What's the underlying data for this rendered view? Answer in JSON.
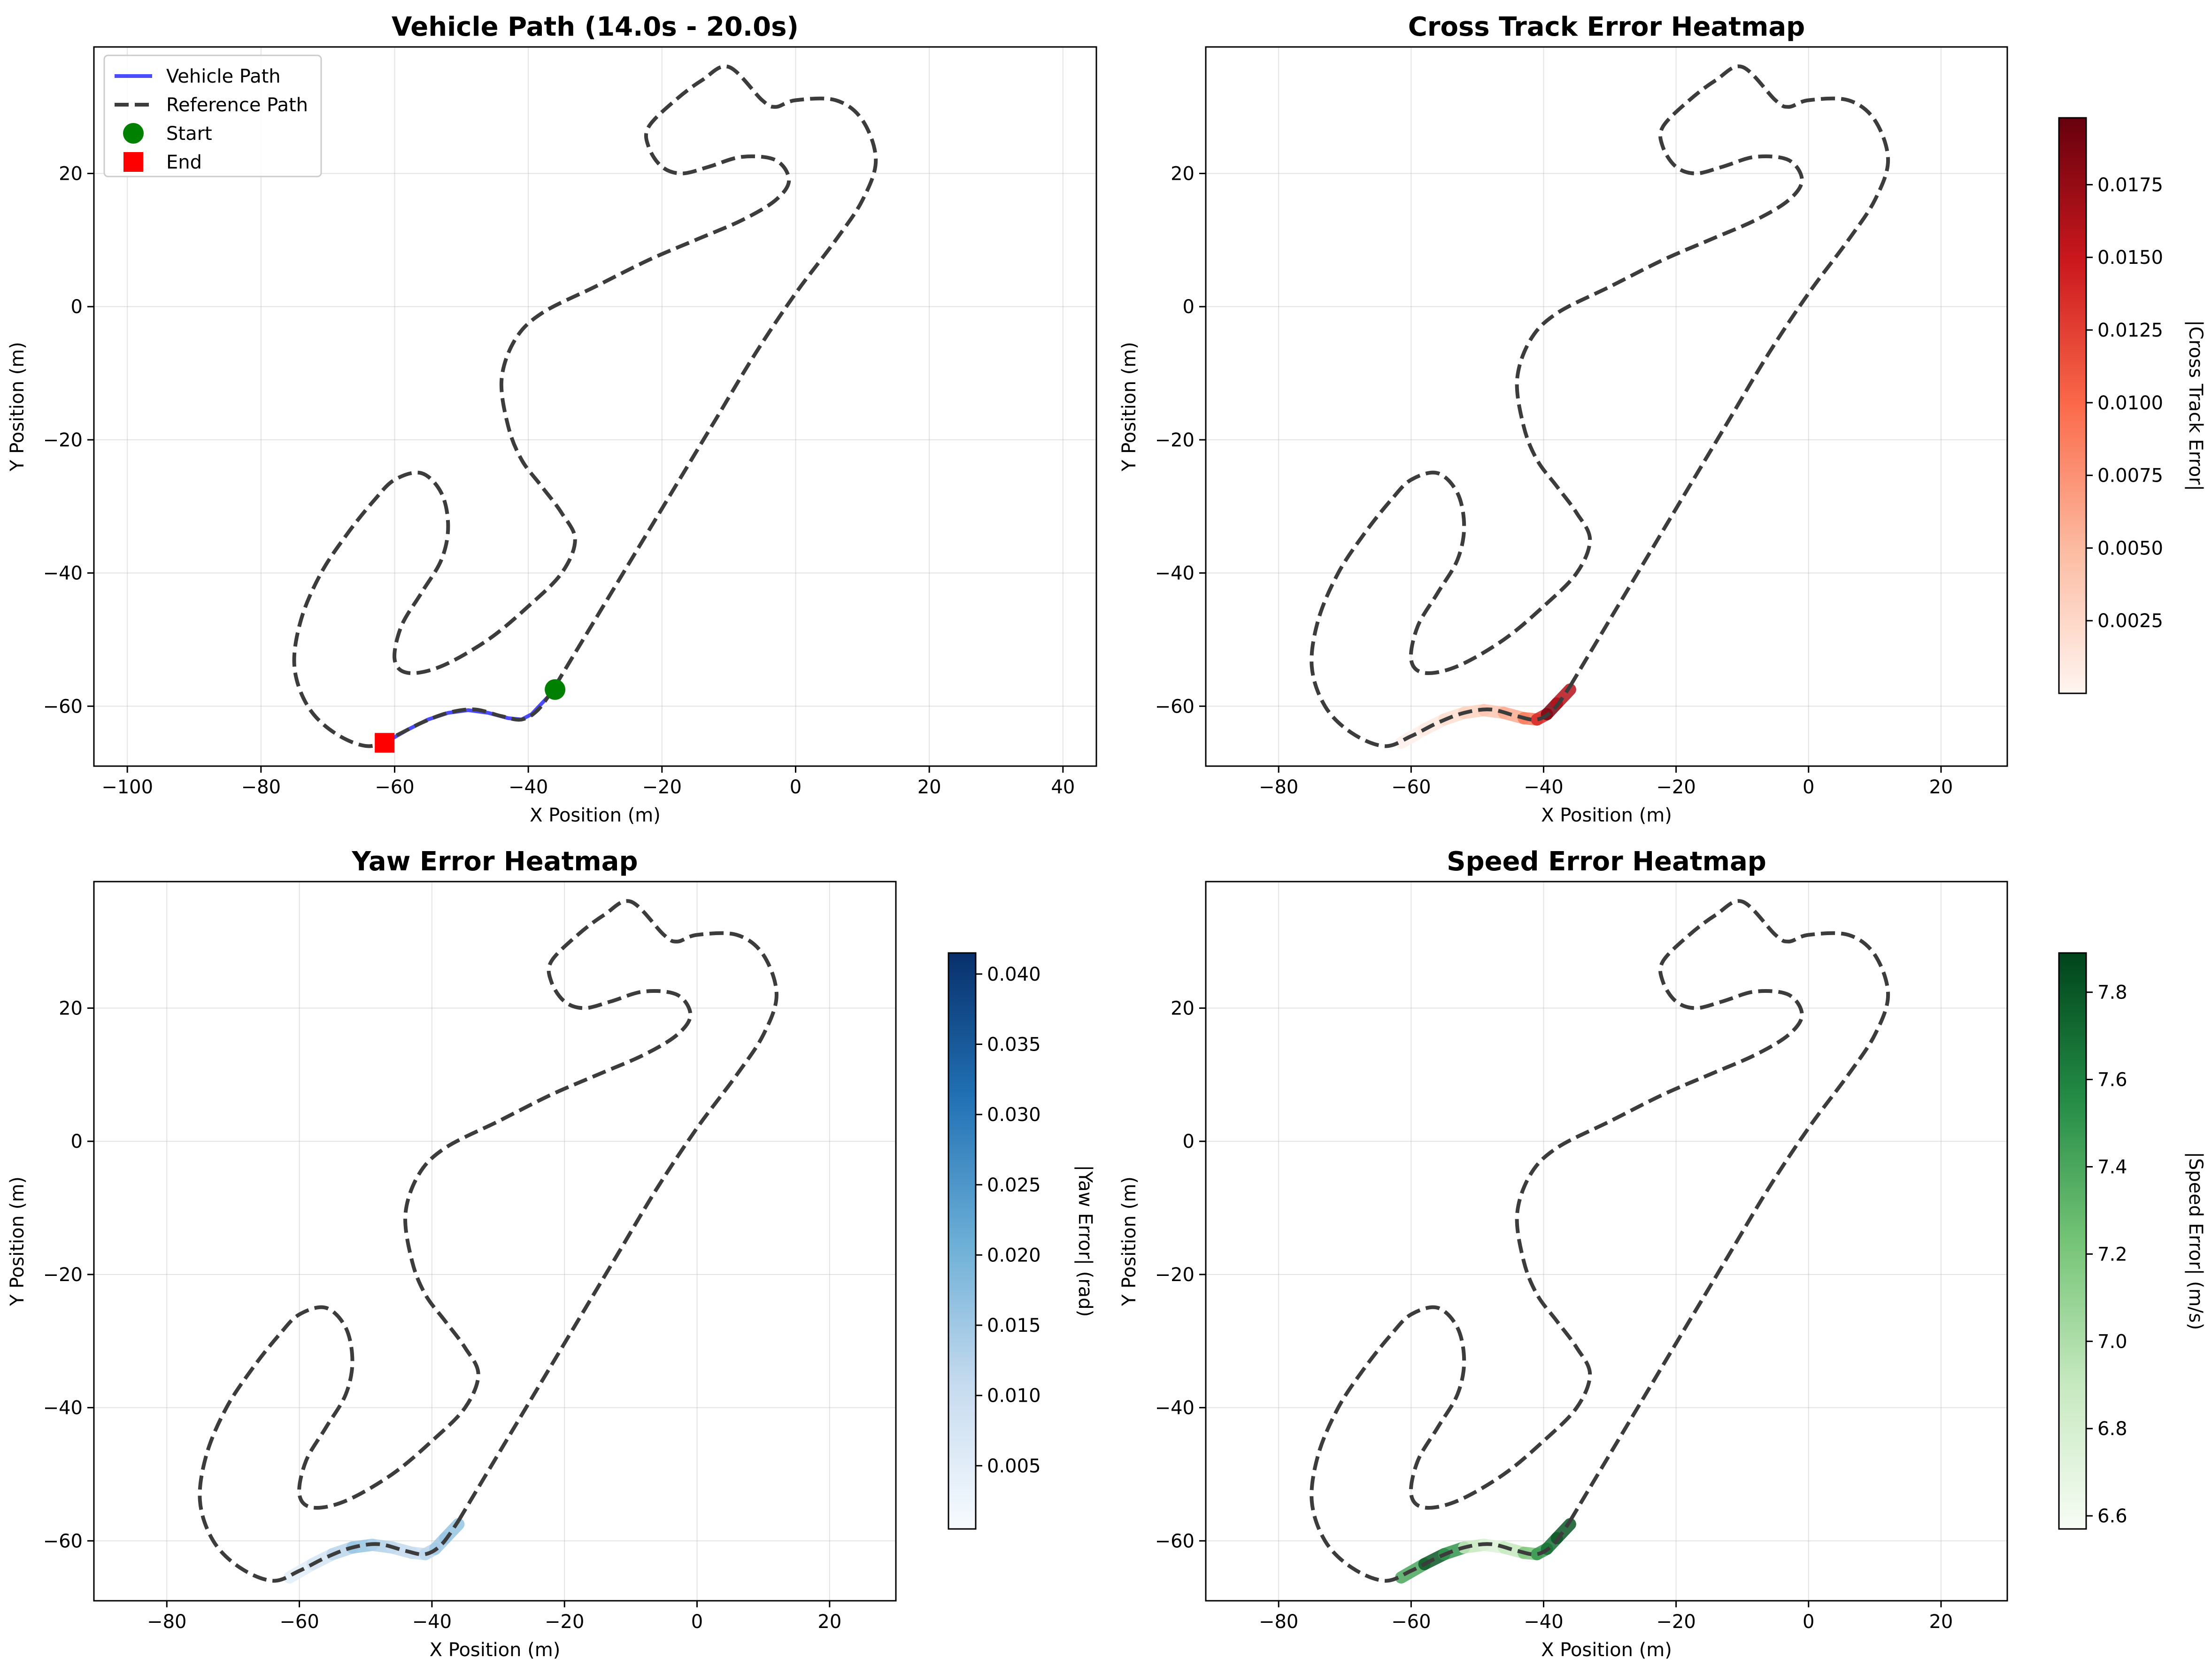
{
  "figure": {
    "background": "#ffffff"
  },
  "reference_track": {
    "name": "Reference Path",
    "color": "#3c3c3c",
    "points": [
      [
        -36,
        -57
      ],
      [
        -30,
        -47
      ],
      [
        -24,
        -37
      ],
      [
        -18,
        -27
      ],
      [
        -12,
        -17
      ],
      [
        -6,
        -7
      ],
      [
        0,
        2
      ],
      [
        6,
        10
      ],
      [
        10,
        16
      ],
      [
        12,
        22
      ],
      [
        10,
        28
      ],
      [
        6,
        31
      ],
      [
        0,
        31
      ],
      [
        -3,
        30
      ],
      [
        -5,
        31
      ],
      [
        -10,
        36
      ],
      [
        -14,
        34
      ],
      [
        -18,
        31
      ],
      [
        -22,
        27
      ],
      [
        -22,
        24
      ],
      [
        -20,
        21
      ],
      [
        -17,
        20
      ],
      [
        -13,
        21
      ],
      [
        -8,
        22.5
      ],
      [
        -3,
        22
      ],
      [
        -1,
        19
      ],
      [
        -3,
        16
      ],
      [
        -8,
        13
      ],
      [
        -15,
        10
      ],
      [
        -22,
        7
      ],
      [
        -30,
        3
      ],
      [
        -38,
        -1
      ],
      [
        -42,
        -5
      ],
      [
        -44,
        -11
      ],
      [
        -43,
        -18
      ],
      [
        -41,
        -23
      ],
      [
        -38,
        -27
      ],
      [
        -35,
        -31
      ],
      [
        -33,
        -35
      ],
      [
        -35,
        -40
      ],
      [
        -40,
        -45
      ],
      [
        -46,
        -50
      ],
      [
        -53,
        -54
      ],
      [
        -58,
        -55
      ],
      [
        -60,
        -53
      ],
      [
        -59,
        -48
      ],
      [
        -56,
        -43
      ],
      [
        -53,
        -38
      ],
      [
        -52,
        -33
      ],
      [
        -53,
        -28
      ],
      [
        -56,
        -25
      ],
      [
        -60,
        -26
      ],
      [
        -63,
        -29
      ],
      [
        -67,
        -34
      ],
      [
        -71,
        -40
      ],
      [
        -74,
        -47
      ],
      [
        -75,
        -54
      ],
      [
        -73,
        -60
      ],
      [
        -69,
        -64
      ],
      [
        -64,
        -66
      ],
      [
        -60,
        -64.5
      ],
      [
        -56,
        -62.5
      ],
      [
        -52,
        -61
      ],
      [
        -48,
        -60.5
      ],
      [
        -44,
        -61.5
      ],
      [
        -41,
        -62
      ],
      [
        -38.5,
        -60.5
      ],
      [
        -36,
        -57
      ]
    ]
  },
  "vehicle_segment": [
    [
      -61.5,
      -65.5
    ],
    [
      -58,
      -63.5
    ],
    [
      -55,
      -62
    ],
    [
      -52,
      -61
    ],
    [
      -49,
      -60.6
    ],
    [
      -46,
      -61
    ],
    [
      -43,
      -61.8
    ],
    [
      -41,
      -62
    ],
    [
      -39.5,
      -61.2
    ],
    [
      -38,
      -59.6
    ],
    [
      -36,
      -57.5
    ]
  ],
  "chart_data": [
    {
      "type": "line",
      "title": "Vehicle Path (14.0s - 20.0s)",
      "xlabel": "X Position (m)",
      "ylabel": "Y Position (m)",
      "xlim": [
        -105,
        45
      ],
      "ylim": [
        -69,
        39
      ],
      "xticks": [
        -100,
        -80,
        -60,
        -40,
        -20,
        0,
        20,
        40
      ],
      "yticks": [
        -60,
        -40,
        -20,
        0,
        20
      ],
      "grid": true,
      "legend_position": "upper-left",
      "series": [
        {
          "name": "Vehicle Path",
          "color": "#0000ff",
          "style": "solid"
        },
        {
          "name": "Reference Path",
          "color": "#3c3c3c",
          "style": "dashed"
        },
        {
          "name": "Start",
          "color": "#008000",
          "marker": "circle",
          "x": -36,
          "y": -57.5
        },
        {
          "name": "End",
          "color": "#ff0000",
          "marker": "square",
          "x": -61.5,
          "y": -65.5
        }
      ]
    },
    {
      "type": "heatmap",
      "title": "Cross Track Error Heatmap",
      "xlabel": "X Position (m)",
      "ylabel": "Y Position (m)",
      "xlim": [
        -91,
        30
      ],
      "ylim": [
        -69,
        39
      ],
      "xticks": [
        -80,
        -60,
        -40,
        -20,
        0,
        20
      ],
      "yticks": [
        -60,
        -40,
        -20,
        0,
        20
      ],
      "grid": true,
      "colorbar": {
        "label": "|Cross Track Error|",
        "range": [
          0.0,
          0.0198
        ],
        "ticks": [
          "0.0025",
          "0.0050",
          "0.0075",
          "0.0100",
          "0.0125",
          "0.0150",
          "0.0175"
        ],
        "colors": [
          "#fff5f0",
          "#fcbba1",
          "#fb6a4a",
          "#cb181d",
          "#67000d"
        ]
      },
      "error_values": [
        0.0005,
        0.001,
        0.002,
        0.003,
        0.004,
        0.006,
        0.009,
        0.014,
        0.019,
        0.016,
        0.012
      ]
    },
    {
      "type": "heatmap",
      "title": "Yaw Error Heatmap",
      "xlabel": "X Position (m)",
      "ylabel": "Y Position (m)",
      "xlim": [
        -91,
        30
      ],
      "ylim": [
        -69,
        39
      ],
      "xticks": [
        -80,
        -60,
        -40,
        -20,
        0,
        20
      ],
      "yticks": [
        -60,
        -40,
        -20,
        0,
        20
      ],
      "grid": true,
      "colorbar": {
        "label": "|Yaw Error| (rad)",
        "range": [
          0.0005,
          0.0415
        ],
        "ticks": [
          "0.005",
          "0.010",
          "0.015",
          "0.020",
          "0.025",
          "0.030",
          "0.035",
          "0.040"
        ],
        "colors": [
          "#f7fbff",
          "#c6dbef",
          "#6baed6",
          "#2171b5",
          "#08306b"
        ]
      },
      "error_values": [
        0.005,
        0.008,
        0.012,
        0.016,
        0.013,
        0.011,
        0.01,
        0.012,
        0.015,
        0.016,
        0.017
      ]
    },
    {
      "type": "heatmap",
      "title": "Speed Error Heatmap",
      "xlabel": "X Position (m)",
      "ylabel": "Y Position (m)",
      "xlim": [
        -91,
        30
      ],
      "ylim": [
        -69,
        39
      ],
      "xticks": [
        -80,
        -60,
        -40,
        -20,
        0,
        20
      ],
      "yticks": [
        -60,
        -40,
        -20,
        0,
        20
      ],
      "grid": true,
      "colorbar": {
        "label": "|Speed Error| (m/s)",
        "range": [
          6.57,
          7.89
        ],
        "ticks": [
          "6.6",
          "6.8",
          "7.0",
          "7.2",
          "7.4",
          "7.6",
          "7.8"
        ],
        "colors": [
          "#f7fcf5",
          "#c7e9c0",
          "#74c476",
          "#238b45",
          "#00441b"
        ]
      },
      "error_values": [
        7.4,
        7.8,
        7.5,
        6.9,
        6.75,
        6.9,
        7.2,
        7.5,
        7.7,
        7.8,
        7.85
      ]
    }
  ]
}
